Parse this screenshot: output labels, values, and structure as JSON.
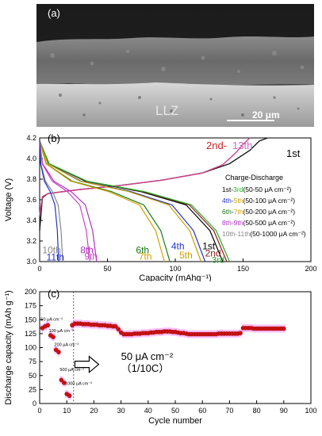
{
  "panel_a": {
    "label": "(a)",
    "material_label": "LLZ",
    "scale_bar_label": "20 μm"
  },
  "chart_data": [
    {
      "id": "b",
      "panel_label": "(b)",
      "type": "line",
      "xlabel": "Capacity (mAhg⁻¹)",
      "ylabel": "Voltage (V)",
      "xlim": [
        0,
        200
      ],
      "ylim": [
        3.0,
        4.2
      ],
      "xticks": [
        0,
        50,
        100,
        150,
        200
      ],
      "yticks": [
        3.0,
        3.2,
        3.4,
        3.6,
        3.8,
        4.0,
        4.2
      ],
      "grid": false,
      "legend_title": "Charge-Discharge",
      "legend_position": "right",
      "legend_entries": [
        {
          "parts": [
            {
              "text": "1st-",
              "color": "#000000"
            },
            {
              "text": "3rd",
              "color": "#22aa22"
            },
            {
              "text": "(50-50 μA cm⁻²)",
              "color": "#000000"
            }
          ]
        },
        {
          "parts": [
            {
              "text": "4th-",
              "color": "#2233cc"
            },
            {
              "text": "5th",
              "color": "#c8a000"
            },
            {
              "text": "(50-100 μA cm⁻²)",
              "color": "#000000"
            }
          ]
        },
        {
          "parts": [
            {
              "text": "6th",
              "color": "#1a7a1a"
            },
            {
              "text": "-",
              "color": "#000000"
            },
            {
              "text": "7th",
              "color": "#d4a000"
            },
            {
              "text": "(50-200 μA cm⁻²)",
              "color": "#000000"
            }
          ]
        },
        {
          "parts": [
            {
              "text": "8th",
              "color": "#b030c0"
            },
            {
              "text": "-9th",
              "color": "#b030c0"
            },
            {
              "text": "(50-500 μA cm⁻²)",
              "color": "#000000"
            }
          ]
        },
        {
          "parts": [
            {
              "text": "10th-11th",
              "color": "#888888"
            },
            {
              "text": "(50-1000 μA cm⁻²)",
              "color": "#000000"
            }
          ]
        }
      ],
      "charge_labels": [
        {
          "text": "2nd-",
          "color": "#cc2222"
        },
        {
          "text": "13th",
          "color": "#cc66cc"
        },
        {
          "text": "1st",
          "color": "#000000"
        }
      ],
      "charge_curves": [
        {
          "cycle": "1st",
          "color": "#1a1a1a",
          "points": [
            [
              0,
              3.3
            ],
            [
              2,
              3.62
            ],
            [
              6,
              3.66
            ],
            [
              30,
              3.7
            ],
            [
              60,
              3.74
            ],
            [
              90,
              3.79
            ],
            [
              120,
              3.86
            ],
            [
              140,
              3.95
            ],
            [
              155,
              4.08
            ],
            [
              162,
              4.17
            ],
            [
              168,
              4.2
            ]
          ]
        },
        {
          "cycle": "2nd-13th",
          "color": "#d0448a",
          "points": [
            [
              0,
              3.45
            ],
            [
              2,
              3.63
            ],
            [
              6,
              3.66
            ],
            [
              30,
              3.7
            ],
            [
              60,
              3.74
            ],
            [
              90,
              3.79
            ],
            [
              120,
              3.86
            ],
            [
              135,
              3.94
            ],
            [
              145,
              4.06
            ],
            [
              150,
              4.14
            ],
            [
              155,
              4.2
            ]
          ]
        }
      ],
      "discharge_curves": [
        {
          "cycle": "1st",
          "color": "#000000",
          "end_capacity": 135
        },
        {
          "cycle": "2nd",
          "color": "#8b1a1a",
          "end_capacity": 138
        },
        {
          "cycle": "3rd",
          "color": "#22aa22",
          "end_capacity": 140
        },
        {
          "cycle": "4th",
          "color": "#2233cc",
          "end_capacity": 122
        },
        {
          "cycle": "5th",
          "color": "#c8a000",
          "end_capacity": 119
        },
        {
          "cycle": "6th",
          "color": "#1a7a1a",
          "end_capacity": 96
        },
        {
          "cycle": "7th",
          "color": "#d4a000",
          "end_capacity": 92
        },
        {
          "cycle": "8th",
          "color": "#b030c0",
          "end_capacity": 42
        },
        {
          "cycle": "9th",
          "color": "#cc44cc",
          "end_capacity": 37
        },
        {
          "cycle": "10th",
          "color": "#888888",
          "end_capacity": 17
        },
        {
          "cycle": "11th",
          "color": "#2233cc",
          "end_capacity": 14
        }
      ],
      "curve_labels": [
        {
          "text": "1st",
          "color": "#000000"
        },
        {
          "text": "2nd",
          "color": "#8b1a1a"
        },
        {
          "text": "3rd",
          "color": "#22aa22"
        },
        {
          "text": "4th",
          "color": "#2233cc"
        },
        {
          "text": "5th",
          "color": "#c8a000"
        },
        {
          "text": "6th",
          "color": "#1a7a1a"
        },
        {
          "text": "7th",
          "color": "#d4a000"
        },
        {
          "text": "8th",
          "color": "#b030c0"
        },
        {
          "text": "9th",
          "color": "#cc44cc"
        },
        {
          "text": "10th",
          "color": "#888888"
        },
        {
          "text": "11th",
          "color": "#2233cc"
        }
      ]
    },
    {
      "id": "c",
      "panel_label": "(c)",
      "type": "scatter",
      "xlabel": "Cycle number",
      "ylabel": "Discharge capacity (mAh g⁻¹)",
      "xlim": [
        0,
        100
      ],
      "ylim": [
        0,
        200
      ],
      "xticks": [
        0,
        10,
        20,
        30,
        40,
        50,
        60,
        70,
        80,
        90,
        100
      ],
      "yticks": [
        0,
        25,
        50,
        75,
        100,
        125,
        150,
        175,
        200
      ],
      "grid": false,
      "marker_color": "#cc1111",
      "band_color": "#ff88ff",
      "divider_x": 12.5,
      "rate_labels": [
        {
          "text": "50 μA cm⁻²",
          "cycle": 1
        },
        {
          "text": "100 μA cm⁻²",
          "cycle": 4
        },
        {
          "text": "200 μA cm⁻²",
          "cycle": 6
        },
        {
          "text": "500 μA cm⁻²",
          "cycle": 8
        },
        {
          "text": "1000 μA cm⁻²",
          "cycle": 10
        }
      ],
      "annotation_lines": [
        "50 μA cm⁻²",
        "（1/10C）"
      ],
      "points": [
        [
          1,
          135
        ],
        [
          2,
          138
        ],
        [
          3,
          140
        ],
        [
          4,
          122
        ],
        [
          5,
          119
        ],
        [
          6,
          96
        ],
        [
          7,
          92
        ],
        [
          8,
          42
        ],
        [
          9,
          37
        ],
        [
          10,
          17
        ],
        [
          11,
          14
        ],
        [
          12,
          140
        ],
        [
          13,
          143
        ],
        [
          14,
          143
        ],
        [
          15,
          143
        ],
        [
          16,
          142
        ],
        [
          17,
          142
        ],
        [
          18,
          142
        ],
        [
          19,
          141
        ],
        [
          20,
          141
        ],
        [
          21,
          141
        ],
        [
          22,
          140
        ],
        [
          23,
          140
        ],
        [
          24,
          140
        ],
        [
          25,
          139
        ],
        [
          26,
          139
        ],
        [
          27,
          138
        ],
        [
          28,
          138
        ],
        [
          29,
          133
        ],
        [
          30,
          127
        ],
        [
          31,
          124
        ],
        [
          32,
          124
        ],
        [
          33,
          124
        ],
        [
          34,
          124
        ],
        [
          35,
          125
        ],
        [
          36,
          125
        ],
        [
          37,
          125
        ],
        [
          38,
          126
        ],
        [
          39,
          126
        ],
        [
          40,
          126
        ],
        [
          41,
          127
        ],
        [
          42,
          127
        ],
        [
          43,
          128
        ],
        [
          44,
          128
        ],
        [
          45,
          128
        ],
        [
          46,
          129
        ],
        [
          47,
          129
        ],
        [
          48,
          129
        ],
        [
          49,
          128
        ],
        [
          50,
          128
        ],
        [
          51,
          127
        ],
        [
          52,
          126
        ],
        [
          53,
          126
        ],
        [
          54,
          125
        ],
        [
          55,
          124
        ],
        [
          56,
          124
        ],
        [
          57,
          124
        ],
        [
          58,
          124
        ],
        [
          59,
          124
        ],
        [
          60,
          124
        ],
        [
          61,
          124
        ],
        [
          62,
          124
        ],
        [
          63,
          124
        ],
        [
          64,
          124
        ],
        [
          65,
          124
        ],
        [
          66,
          125
        ],
        [
          67,
          125
        ],
        [
          68,
          125
        ],
        [
          69,
          125
        ],
        [
          70,
          125
        ],
        [
          71,
          125
        ],
        [
          72,
          125
        ],
        [
          73,
          125
        ],
        [
          74,
          126
        ],
        [
          75,
          135
        ],
        [
          76,
          135
        ],
        [
          77,
          135
        ],
        [
          78,
          135
        ],
        [
          79,
          134
        ],
        [
          80,
          134
        ],
        [
          81,
          134
        ],
        [
          82,
          134
        ],
        [
          83,
          134
        ],
        [
          84,
          134
        ],
        [
          85,
          134
        ],
        [
          86,
          134
        ],
        [
          87,
          134
        ],
        [
          88,
          134
        ],
        [
          89,
          134
        ],
        [
          90,
          134
        ]
      ]
    }
  ]
}
